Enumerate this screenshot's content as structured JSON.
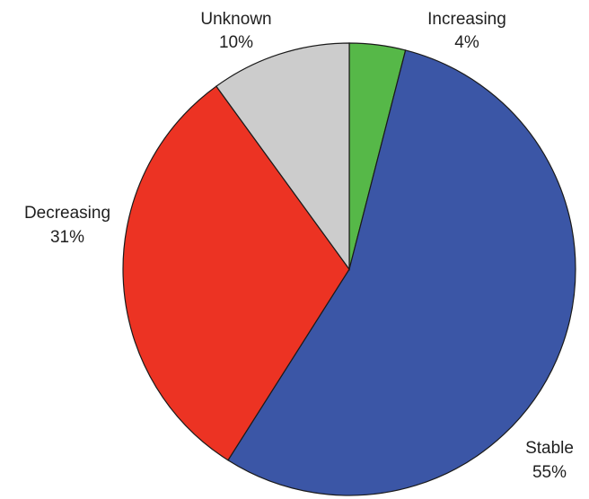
{
  "chart_data": {
    "type": "pie",
    "title": "",
    "slices": [
      {
        "label": "Increasing",
        "value": 4,
        "percent_label": "4%",
        "color": "#56b848"
      },
      {
        "label": "Stable",
        "value": 55,
        "percent_label": "55%",
        "color": "#3b56a6"
      },
      {
        "label": "Decreasing",
        "value": 31,
        "percent_label": "31%",
        "color": "#ec3323"
      },
      {
        "label": "Unknown",
        "value": 10,
        "percent_label": "10%",
        "color": "#cccccc"
      }
    ],
    "start": "top",
    "direction": "clockwise",
    "legend": "none"
  }
}
